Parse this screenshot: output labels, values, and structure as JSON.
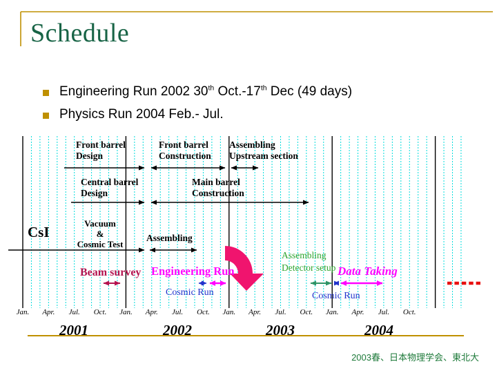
{
  "slide_title": "Schedule",
  "bullets": {
    "b1": {
      "p1": "Engineering Run 2002 30",
      "sup1": "th",
      "p2": " Oct.-17",
      "sup2": "th",
      "p3": " Dec (49 days)"
    },
    "b2": "Physics Run 2004 Feb.- Jul."
  },
  "timeline": {
    "row1": {
      "front_barrel_design": "Front barrel\nDesign",
      "front_barrel_construction": "Front barrel\nConstruction",
      "assembling_upstream": "Assembling\nUpstream section"
    },
    "row2": {
      "central_barrel_design": "Central barrel\nDesign",
      "main_barrel_construction": "Main barrel\nConstruction"
    },
    "row3": {
      "csi": "CsI",
      "vacuum_cosmic": "Vacuum\n&\nCosmic Test",
      "assembling": "Assembling"
    },
    "row4": {
      "beam_survey": "Beam survey",
      "engineering_run": "Engineering Run",
      "cosmic_run": "Cosmic Run",
      "assembling_detector": "Assembling\nDetector setup",
      "data_taking": "Data Taking"
    },
    "month_labels": [
      "Jan.",
      "Apr.",
      "Jul.",
      "Oct.",
      "Jan.",
      "Apr.",
      "Jul.",
      "Oct.",
      "Jan.",
      "Apr.",
      "Jul.",
      "Oct.",
      "Jan.",
      "Apr.",
      "Jul.",
      "Oct."
    ],
    "years": [
      "2001",
      "2002",
      "2003",
      "2004"
    ],
    "tasks": [
      {
        "label": "Front barrel Design",
        "approx_span": "mid 2001 - Mar 2002"
      },
      {
        "label": "Front barrel Construction",
        "approx_span": "Apr 2002 - Dec 2002"
      },
      {
        "label": "Assembling Upstream section",
        "approx_span": "Jan 2003 - Apr 2003"
      },
      {
        "label": "Central barrel Design",
        "approx_span": "Jul 2001 - Mar 2002"
      },
      {
        "label": "Main barrel Construction",
        "approx_span": "Apr 2002 - Oct 2003"
      },
      {
        "label": "CsI Vacuum & Cosmic Test",
        "approx_span": "before Jan 2001 - Mar 2002"
      },
      {
        "label": "CsI Assembling",
        "approx_span": "Apr 2002 - Sep 2002"
      },
      {
        "label": "Beam survey",
        "approx_span": "Oct 2001 - Dec 2001"
      },
      {
        "label": "Cosmic Run (first)",
        "approx_span": "Oct 2002"
      },
      {
        "label": "Engineering Run",
        "approx_span": "30 Oct 2002 - 17 Dec 2002"
      },
      {
        "label": "Assembling / Detector setup",
        "approx_span": "Oct 2003 - Dec 2003"
      },
      {
        "label": "Cosmic Run (second)",
        "approx_span": "Jan 2004"
      },
      {
        "label": "Data Taking",
        "approx_span": "Feb 2004 - Jul 2004"
      },
      {
        "label": "continuation (red dotted)",
        "approx_span": "2005"
      }
    ]
  },
  "footer": "2003春、日本物理学会、東北大",
  "colors": {
    "title_green": "#186446",
    "accent_gold": "#BF9000",
    "grid_cyan": "#00DCDC",
    "magenta": "#FF00FF",
    "blue": "#2233CC",
    "crimson": "#B3134F",
    "label_green": "#2CA32C",
    "teal_arrow": "#2E9467",
    "pink_arrow": "#F0146E",
    "red_dots": "#E81010",
    "footer_green": "#1E7A3A"
  }
}
